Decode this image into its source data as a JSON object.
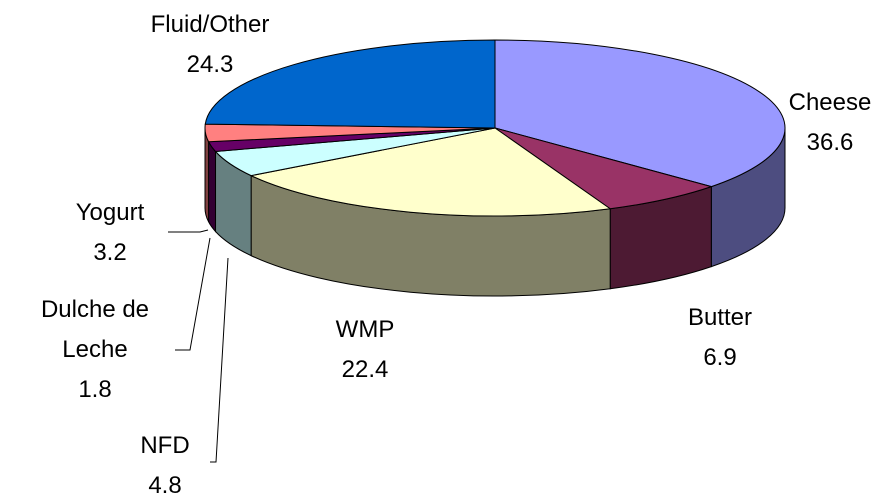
{
  "chart_data": {
    "type": "pie3d",
    "categories": [
      "Cheese",
      "Butter",
      "WMP",
      "NFD",
      "Dulche de Leche",
      "Yogurt",
      "Fluid/Other"
    ],
    "values": [
      36.6,
      6.9,
      22.4,
      4.8,
      1.8,
      3.2,
      24.3
    ],
    "colors": [
      "#9999ff",
      "#993366",
      "#ffffcc",
      "#ccffff",
      "#660066",
      "#ff8080",
      "#0066cc"
    ]
  }
}
